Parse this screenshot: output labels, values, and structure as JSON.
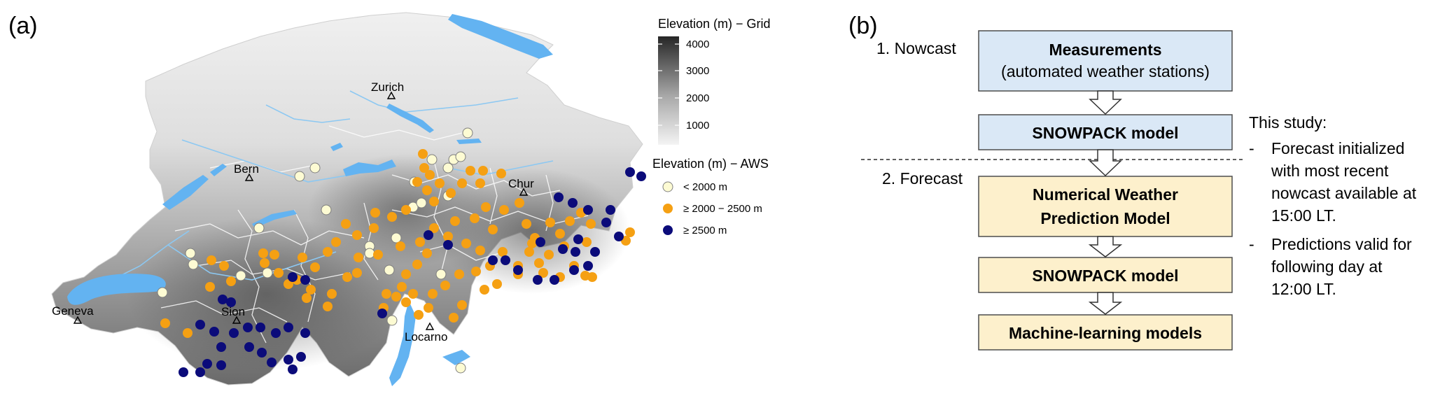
{
  "panel_a": {
    "label": "(a)",
    "cities": [
      {
        "id": "zurich",
        "name": "Zurich"
      },
      {
        "id": "bern",
        "name": "Bern"
      },
      {
        "id": "chur",
        "name": "Chur"
      },
      {
        "id": "geneva",
        "name": "Geneva"
      },
      {
        "id": "sion",
        "name": "Sion"
      },
      {
        "id": "locarno",
        "name": "Locarno"
      }
    ],
    "grid_legend": {
      "title": "Elevation (m) − Grid",
      "ticks": [
        "4000",
        "3000",
        "2000",
        "1000"
      ],
      "color_low": "#f2f2f2",
      "color_high": "#262626"
    },
    "aws_legend": {
      "title": "Elevation (m) − AWS",
      "items": [
        {
          "label": "< 2000 m",
          "color": "#fdfbd3"
        },
        {
          "label": "≥ 2000 − 2500 m",
          "color": "#f5a013"
        },
        {
          "label": "≥ 2500 m",
          "color": "#0b0b7a"
        }
      ]
    },
    "water_color": "#63b3f1",
    "station_counts": {
      "low": 26,
      "mid": 95,
      "high": 46
    }
  },
  "panel_b": {
    "label": "(b)",
    "nowcast_label": "1. Nowcast",
    "forecast_label": "2. Forecast",
    "boxes": [
      {
        "id": "measurements",
        "line1": "Measurements",
        "line2": "(automated weather stations)",
        "fill": "#dae8f6"
      },
      {
        "id": "snowpack-nowcast",
        "line1": "SNOWPACK model",
        "fill": "#dae8f6"
      },
      {
        "id": "nwp",
        "line1": "Numerical Weather",
        "line2": "Prediction Model",
        "fill": "#fdf0cc"
      },
      {
        "id": "snowpack-forecast",
        "line1": "SNOWPACK model",
        "fill": "#fdf0cc"
      },
      {
        "id": "ml",
        "line1": "Machine-learning models",
        "fill": "#fdf0cc"
      }
    ],
    "note": {
      "heading": "This study:",
      "bullets": [
        {
          "dash": "-",
          "lines": [
            "Forecast initialized",
            "with most recent",
            "nowcast available at",
            "15:00 LT."
          ]
        },
        {
          "dash": "-",
          "lines": [
            "Predictions valid for",
            "following day at",
            "12:00 LT."
          ]
        }
      ]
    }
  }
}
